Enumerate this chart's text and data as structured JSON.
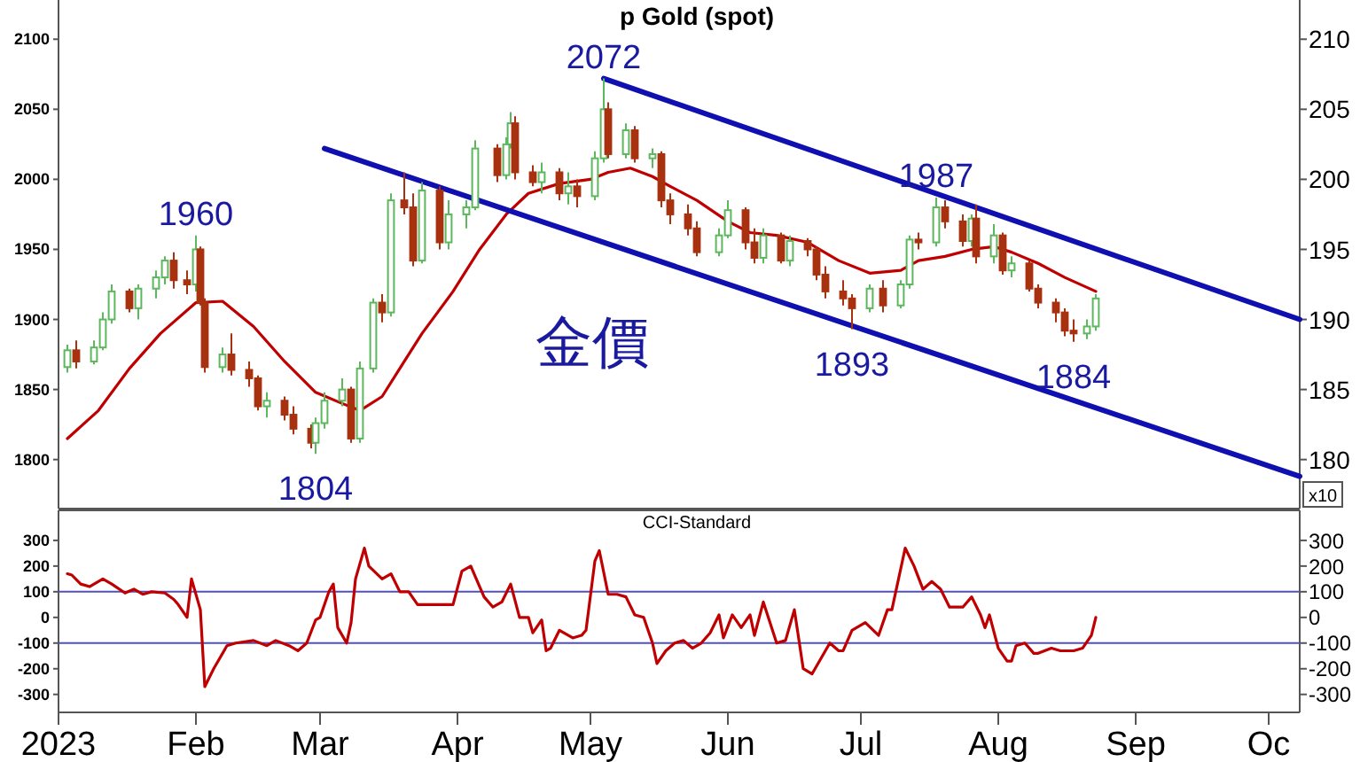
{
  "chart_data": [
    {
      "type": "candlestick",
      "title": "p Gold (spot)",
      "y2label": "x10",
      "tick_labels": "y",
      "x": [
        "2023-01-03",
        "2023-01-05",
        "2023-01-09",
        "2023-01-11",
        "2023-01-13",
        "2023-01-17",
        "2023-01-19",
        "2023-01-23",
        "2023-01-25",
        "2023-01-27",
        "2023-01-30",
        "2023-02-01",
        "2023-02-02",
        "2023-02-03",
        "2023-02-07",
        "2023-02-09",
        "2023-02-13",
        "2023-02-15",
        "2023-02-17",
        "2023-02-21",
        "2023-02-23",
        "2023-02-27",
        "2023-02-28",
        "2023-03-02",
        "2023-03-06",
        "2023-03-08",
        "2023-03-10",
        "2023-03-13",
        "2023-03-15",
        "2023-03-17",
        "2023-03-20",
        "2023-03-22",
        "2023-03-24",
        "2023-03-28",
        "2023-03-30",
        "2023-04-03",
        "2023-04-05",
        "2023-04-10",
        "2023-04-12",
        "2023-04-13",
        "2023-04-14",
        "2023-04-18",
        "2023-04-20",
        "2023-04-24",
        "2023-04-26",
        "2023-04-28",
        "2023-05-02",
        "2023-05-04",
        "2023-05-05",
        "2023-05-09",
        "2023-05-11",
        "2023-05-15",
        "2023-05-17",
        "2023-05-19",
        "2023-05-23",
        "2023-05-25",
        "2023-05-30",
        "2023-06-01",
        "2023-06-05",
        "2023-06-07",
        "2023-06-09",
        "2023-06-13",
        "2023-06-15",
        "2023-06-19",
        "2023-06-21",
        "2023-06-23",
        "2023-06-27",
        "2023-06-29",
        "2023-07-03",
        "2023-07-06",
        "2023-07-10",
        "2023-07-12",
        "2023-07-14",
        "2023-07-18",
        "2023-07-20",
        "2023-07-24",
        "2023-07-26",
        "2023-07-27",
        "2023-07-31",
        "2023-08-02",
        "2023-08-04",
        "2023-08-08",
        "2023-08-10",
        "2023-08-14",
        "2023-08-16",
        "2023-08-18",
        "2023-08-21",
        "2023-08-23"
      ],
      "ohlc": [
        [
          1866,
          1882,
          1862,
          1878
        ],
        [
          1878,
          1885,
          1865,
          1870
        ],
        [
          1870,
          1885,
          1868,
          1880
        ],
        [
          1880,
          1905,
          1878,
          1900
        ],
        [
          1900,
          1925,
          1897,
          1920
        ],
        [
          1920,
          1922,
          1905,
          1908
        ],
        [
          1908,
          1925,
          1900,
          1922
        ],
        [
          1922,
          1935,
          1915,
          1930
        ],
        [
          1930,
          1945,
          1925,
          1942
        ],
        [
          1942,
          1948,
          1922,
          1928
        ],
        [
          1928,
          1935,
          1918,
          1925
        ],
        [
          1925,
          1960,
          1920,
          1950
        ],
        [
          1950,
          1952,
          1910,
          1912
        ],
        [
          1912,
          1915,
          1862,
          1866
        ],
        [
          1866,
          1880,
          1862,
          1875
        ],
        [
          1875,
          1890,
          1860,
          1864
        ],
        [
          1864,
          1870,
          1852,
          1858
        ],
        [
          1858,
          1860,
          1835,
          1838
        ],
        [
          1838,
          1848,
          1830,
          1842
        ],
        [
          1842,
          1845,
          1828,
          1832
        ],
        [
          1832,
          1838,
          1818,
          1822
        ],
        [
          1822,
          1825,
          1808,
          1812
        ],
        [
          1812,
          1830,
          1804,
          1826
        ],
        [
          1826,
          1848,
          1822,
          1842
        ],
        [
          1842,
          1858,
          1838,
          1850
        ],
        [
          1850,
          1852,
          1812,
          1815
        ],
        [
          1815,
          1870,
          1812,
          1865
        ],
        [
          1865,
          1915,
          1862,
          1912
        ],
        [
          1912,
          1918,
          1898,
          1905
        ],
        [
          1905,
          1990,
          1902,
          1985
        ],
        [
          1985,
          2005,
          1975,
          1980
        ],
        [
          1980,
          1990,
          1938,
          1942
        ],
        [
          1942,
          1998,
          1940,
          1992
        ],
        [
          1992,
          1995,
          1950,
          1955
        ],
        [
          1955,
          1985,
          1950,
          1975
        ],
        [
          1975,
          1985,
          1965,
          1980
        ],
        [
          1980,
          2028,
          1978,
          2022
        ],
        [
          2022,
          2025,
          1998,
          2003
        ],
        [
          2003,
          2030,
          2000,
          2025
        ],
        [
          2025,
          2048,
          2022,
          2040
        ],
        [
          2040,
          2045,
          2000,
          2005
        ],
        [
          2005,
          2010,
          1995,
          1998
        ],
        [
          1998,
          2012,
          1990,
          2005
        ],
        [
          2005,
          2008,
          1985,
          1990
        ],
        [
          1990,
          2005,
          1982,
          1995
        ],
        [
          1995,
          2000,
          1980,
          1988
        ],
        [
          1988,
          2020,
          1985,
          2015
        ],
        [
          2015,
          2072,
          2012,
          2050
        ],
        [
          2050,
          2055,
          2015,
          2018
        ],
        [
          2018,
          2040,
          2015,
          2035
        ],
        [
          2035,
          2038,
          2012,
          2015
        ],
        [
          2015,
          2022,
          2008,
          2018
        ],
        [
          2018,
          2020,
          1980,
          1985
        ],
        [
          1985,
          1990,
          1968,
          1975
        ],
        [
          1975,
          1982,
          1960,
          1965
        ],
        [
          1965,
          1970,
          1945,
          1948
        ],
        [
          1948,
          1965,
          1945,
          1960
        ],
        [
          1960,
          1985,
          1958,
          1978
        ],
        [
          1978,
          1980,
          1950,
          1955
        ],
        [
          1955,
          1965,
          1940,
          1944
        ],
        [
          1944,
          1965,
          1940,
          1960
        ],
        [
          1960,
          1962,
          1940,
          1942
        ],
        [
          1942,
          1960,
          1938,
          1956
        ],
        [
          1956,
          1958,
          1945,
          1950
        ],
        [
          1950,
          1952,
          1928,
          1932
        ],
        [
          1932,
          1938,
          1915,
          1920
        ],
        [
          1920,
          1928,
          1910,
          1915
        ],
        [
          1915,
          1918,
          1893,
          1908
        ],
        [
          1908,
          1925,
          1905,
          1922
        ],
        [
          1922,
          1928,
          1905,
          1910
        ],
        [
          1910,
          1928,
          1908,
          1925
        ],
        [
          1925,
          1960,
          1922,
          1957
        ],
        [
          1957,
          1962,
          1950,
          1955
        ],
        [
          1955,
          1987,
          1952,
          1980
        ],
        [
          1980,
          1985,
          1965,
          1970
        ],
        [
          1970,
          1975,
          1952,
          1956
        ],
        [
          1956,
          1975,
          1952,
          1972
        ],
        [
          1972,
          1982,
          1940,
          1945
        ],
        [
          1945,
          1968,
          1940,
          1960
        ],
        [
          1960,
          1962,
          1932,
          1935
        ],
        [
          1935,
          1945,
          1930,
          1940
        ],
        [
          1940,
          1942,
          1920,
          1922
        ],
        [
          1922,
          1925,
          1908,
          1912
        ],
        [
          1912,
          1915,
          1898,
          1905
        ],
        [
          1905,
          1908,
          1888,
          1892
        ],
        [
          1892,
          1900,
          1884,
          1890
        ],
        [
          1890,
          1900,
          1886,
          1895
        ],
        [
          1895,
          1918,
          1892,
          1915
        ]
      ],
      "series": [
        {
          "type": "line",
          "color": "#c00000",
          "x": [
            "2023-01-03",
            "2023-01-10",
            "2023-01-17",
            "2023-01-24",
            "2023-02-01",
            "2023-02-07",
            "2023-02-14",
            "2023-02-21",
            "2023-02-28",
            "2023-03-06",
            "2023-03-10",
            "2023-03-15",
            "2023-03-20",
            "2023-03-24",
            "2023-03-31",
            "2023-04-06",
            "2023-04-12",
            "2023-04-17",
            "2023-04-24",
            "2023-05-01",
            "2023-05-05",
            "2023-05-10",
            "2023-05-15",
            "2023-05-19",
            "2023-05-25",
            "2023-06-01",
            "2023-06-06",
            "2023-06-12",
            "2023-06-19",
            "2023-06-26",
            "2023-07-03",
            "2023-07-10",
            "2023-07-14",
            "2023-07-20",
            "2023-07-26",
            "2023-07-31",
            "2023-08-04",
            "2023-08-10",
            "2023-08-16",
            "2023-08-23"
          ],
          "values": [
            1815,
            1835,
            1865,
            1890,
            1912,
            1913,
            1895,
            1870,
            1848,
            1840,
            1835,
            1845,
            1870,
            1890,
            1920,
            1950,
            1975,
            1990,
            1997,
            2000,
            2005,
            2008,
            2002,
            1995,
            1985,
            1970,
            1962,
            1960,
            1955,
            1942,
            1933,
            1935,
            1942,
            1945,
            1950,
            1952,
            1948,
            1940,
            1930,
            1920
          ]
        },
        {
          "type": "line",
          "color": "#1010b0",
          "x": [
            "2023-05-04",
            "2023-10-08"
          ],
          "values": [
            2072,
            1900
          ]
        },
        {
          "type": "line",
          "color": "#1010b0",
          "x": [
            "2023-03-02",
            "2023-10-08"
          ],
          "values": [
            2022,
            1788
          ]
        }
      ],
      "xlim": [
        "2023-01-01",
        "2023-10-08"
      ],
      "ylim": [
        1765,
        2128
      ],
      "yticks": [
        1800,
        1850,
        1900,
        1950,
        2000,
        2050,
        2100
      ],
      "y2lim": [
        176.5,
        212.8
      ],
      "y2ticks": [
        180,
        185,
        190,
        195,
        200,
        205,
        210
      ],
      "annotations": [
        {
          "text": "1960",
          "x": "2023-02-01",
          "y": 1960
        },
        {
          "text": "1804",
          "x": "2023-02-28",
          "y": 1804
        },
        {
          "text": "2072",
          "x": "2023-05-04",
          "y": 2072
        },
        {
          "text": "1987",
          "x": "2023-07-18",
          "y": 1987
        },
        {
          "text": "1893",
          "x": "2023-06-29",
          "y": 1893
        },
        {
          "text": "1884",
          "x": "2023-08-18",
          "y": 1884
        },
        "金價"
      ]
    },
    {
      "type": "line",
      "title": "CCI-Standard",
      "series": [
        {
          "color": "#c00000",
          "x": [
            "2023-01-03",
            "2023-01-04",
            "2023-01-06",
            "2023-01-08",
            "2023-01-11",
            "2023-01-13",
            "2023-01-16",
            "2023-01-18",
            "2023-01-20",
            "2023-01-22",
            "2023-01-25",
            "2023-01-27",
            "2023-01-28",
            "2023-01-30",
            "2023-01-31",
            "2023-02-02",
            "2023-02-03",
            "2023-02-05",
            "2023-02-08",
            "2023-02-10",
            "2023-02-14",
            "2023-02-17",
            "2023-02-19",
            "2023-02-22",
            "2023-02-24",
            "2023-02-26",
            "2023-02-28",
            "2023-03-01",
            "2023-03-03",
            "2023-03-04",
            "2023-03-05",
            "2023-03-07",
            "2023-03-08",
            "2023-03-09",
            "2023-03-11",
            "2023-03-12",
            "2023-03-15",
            "2023-03-17",
            "2023-03-19",
            "2023-03-21",
            "2023-03-23",
            "2023-03-25",
            "2023-03-28",
            "2023-03-31",
            "2023-04-02",
            "2023-04-04",
            "2023-04-06",
            "2023-04-07",
            "2023-04-09",
            "2023-04-11",
            "2023-04-13",
            "2023-04-15",
            "2023-04-17",
            "2023-04-18",
            "2023-04-20",
            "2023-04-21",
            "2023-04-22",
            "2023-04-24",
            "2023-04-27",
            "2023-04-29",
            "2023-04-30",
            "2023-05-02",
            "2023-05-03",
            "2023-05-05",
            "2023-05-07",
            "2023-05-09",
            "2023-05-11",
            "2023-05-13",
            "2023-05-15",
            "2023-05-16",
            "2023-05-18",
            "2023-05-20",
            "2023-05-22",
            "2023-05-24",
            "2023-05-26",
            "2023-05-28",
            "2023-05-30",
            "2023-05-31",
            "2023-06-02",
            "2023-06-04",
            "2023-06-06",
            "2023-06-07",
            "2023-06-09",
            "2023-06-12",
            "2023-06-14",
            "2023-06-16",
            "2023-06-18",
            "2023-06-20",
            "2023-06-24",
            "2023-06-26",
            "2023-06-27",
            "2023-06-29",
            "2023-07-02",
            "2023-07-05",
            "2023-07-07",
            "2023-07-08",
            "2023-07-11",
            "2023-07-13",
            "2023-07-15",
            "2023-07-17",
            "2023-07-19",
            "2023-07-21",
            "2023-07-24",
            "2023-07-26",
            "2023-07-28",
            "2023-07-29",
            "2023-07-30",
            "2023-08-01",
            "2023-08-03",
            "2023-08-04",
            "2023-08-05",
            "2023-08-07",
            "2023-08-09",
            "2023-08-10",
            "2023-08-13",
            "2023-08-15",
            "2023-08-18",
            "2023-08-20",
            "2023-08-22",
            "2023-08-23"
          ],
          "values": [
            170,
            165,
            130,
            120,
            150,
            130,
            95,
            110,
            90,
            100,
            95,
            70,
            50,
            0,
            150,
            30,
            -270,
            -200,
            -110,
            -100,
            -90,
            -110,
            -90,
            -110,
            -130,
            -100,
            -10,
            0,
            100,
            130,
            -40,
            -100,
            -20,
            150,
            270,
            200,
            150,
            170,
            100,
            100,
            50,
            50,
            50,
            50,
            180,
            200,
            120,
            80,
            40,
            60,
            130,
            0,
            0,
            -60,
            -10,
            -130,
            -120,
            -50,
            -80,
            -70,
            -50,
            220,
            260,
            90,
            90,
            80,
            10,
            0,
            -100,
            -180,
            -130,
            -100,
            -90,
            -120,
            -100,
            -60,
            10,
            -80,
            10,
            -40,
            10,
            -70,
            60,
            -100,
            -90,
            30,
            -200,
            -220,
            -100,
            -130,
            -130,
            -50,
            -20,
            -70,
            30,
            30,
            270,
            200,
            110,
            140,
            110,
            40,
            40,
            80,
            10,
            -40,
            10,
            -120,
            -170,
            -170,
            -110,
            -100,
            -140,
            -140,
            -120,
            -130,
            -130,
            -120,
            -70,
            0
          ]
        }
      ],
      "xlim": [
        "2023-01-01",
        "2023-10-08"
      ],
      "xticks": [
        {
          "value": "2023-01-01",
          "label": "2023"
        },
        {
          "value": "2023-02-01",
          "label": "Feb"
        },
        {
          "value": "2023-03-01",
          "label": "Mar"
        },
        {
          "value": "2023-04-01",
          "label": "Apr"
        },
        {
          "value": "2023-05-01",
          "label": "May"
        },
        {
          "value": "2023-06-01",
          "label": "Jun"
        },
        {
          "value": "2023-07-01",
          "label": "Jul"
        },
        {
          "value": "2023-08-01",
          "label": "Aug"
        },
        {
          "value": "2023-09-01",
          "label": "Sep"
        },
        {
          "value": "2023-10-01",
          "label": "Oc"
        }
      ],
      "ylim": [
        -370,
        417
      ],
      "yticks": [
        -300,
        -200,
        -100,
        0,
        100,
        200,
        300
      ],
      "y2lim": [
        -370,
        417
      ],
      "y2ticks": [
        -300,
        -200,
        -100,
        0,
        100,
        200,
        300
      ],
      "ref_lines": [
        {
          "axis": "y",
          "value": 100,
          "color": "#5050c0"
        },
        {
          "axis": "y",
          "value": -100,
          "color": "#5050c0"
        }
      ]
    }
  ]
}
